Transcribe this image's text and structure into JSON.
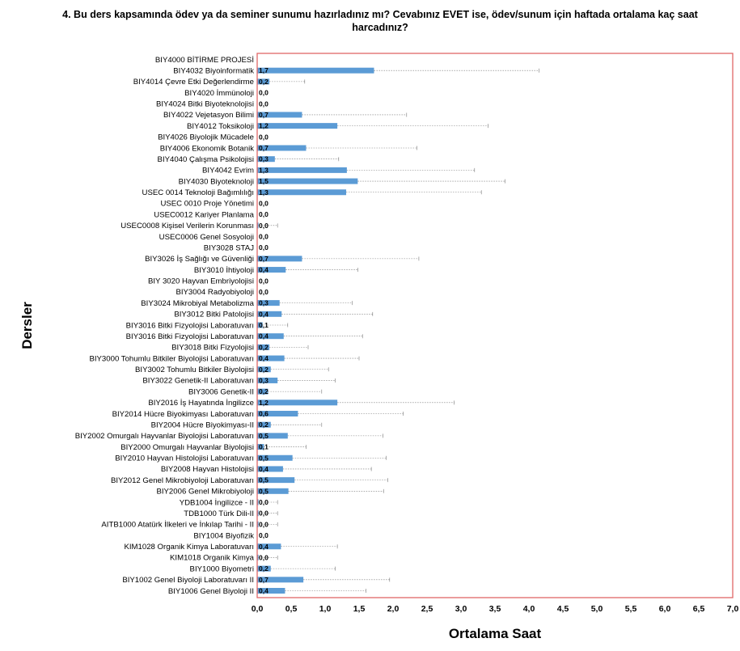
{
  "chart_data": {
    "type": "bar",
    "orientation": "horizontal",
    "title": "4. Bu ders kapsamında ödev ya da seminer sunumu hazırladınız mı? Cevabınız EVET ise, ödev/sunum için haftada ortalama kaç saat harcadınız?",
    "xlabel": "Ortalama Saat",
    "ylabel": "Dersler",
    "xlim": [
      0,
      7
    ],
    "xticks": [
      "0,0",
      "0,5",
      "1,0",
      "1,5",
      "2,0",
      "2,5",
      "3,0",
      "3,5",
      "4,0",
      "4,5",
      "5,0",
      "5,5",
      "6,0",
      "6,5",
      "7,0"
    ],
    "grid": false,
    "bar_color": "#5b9bd5",
    "frame_color": "#e06666",
    "error_bars": true,
    "categories": [
      "BIY4000 BİTİRME PROJESİ",
      "BIY4032 Biyoinformatik",
      "BIY4014 Çevre Etki Değerlendirme",
      "BIY4020 İmmünoloji",
      "BIY4024 Bitki Biyoteknolojisi",
      "BIY4022 Vejetasyon Bilimi",
      "BIY4012 Toksikoloji",
      "BIY4026 Biyolojik Mücadele",
      "BIY4006 Ekonomik Botanik",
      "BIY4040 Çalışma Psikolojisi",
      "BIY4042 Evrim",
      "BIY4030 Biyoteknoloji",
      "USEC 0014 Teknoloji Bağımlılığı",
      "USEC 0010 Proje Yönetimi",
      "USEC0012 Kariyer Planlama",
      "USEC0008 Kişisel Verilerin Korunması",
      "USEC0006 Genel Sosyoloji",
      "BIY3028 STAJ",
      "BIY3026 İş Sağlığı ve Güvenliği",
      "BIY3010 İhtiyoloji",
      "BIY 3020 Hayvan Embriyolojisi",
      "BIY3004 Radyobiyoloji",
      "BIY3024 Mikrobiyal Metabolizma",
      "BIY3012 Bitki Patolojisi",
      "BIY3016 Bitki Fizyolojisi Laboratuvarı",
      "BIY3016 Bitki Fizyolojisi Laboratuvarı",
      "BIY3018 Bitki Fizyolojisi",
      "BIY3000 Tohumlu Bitkiler Biyolojisi Laboratuvarı",
      "BIY3002 Tohumlu Bitkiler Biyolojisi",
      "BIY3022 Genetik-II Laboratuvarı",
      "BIY3006 Genetik-II",
      "BIY2016 İş Hayatında İngilizce",
      "BIY2014 Hücre Biyokimyası Laboratuvarı",
      "BIY2004 Hücre Biyokimyası-II",
      "BIY2002 Omurgalı Hayvanlar Biyolojisi Laboratuvarı",
      "BIY2000 Omurgalı Hayvanlar Biyolojisi",
      "BIY2010 Hayvan Histolojisi Laboratuvarı",
      "BIY2008 Hayvan Histolojisi",
      "BIY2012 Genel Mikrobiyoloji Laboratuvarı",
      "BIY2006 Genel Mikrobiyoloji",
      "YDB1004 İngilizce - II",
      "TDB1000 Türk Dili-II",
      "AITB1000 Atatürk İlkeleri ve İnkılap Tarihi - II",
      "BIY1004 Biyofizik",
      "KIM1028 Organik Kimya Laboratuvarı",
      "KIM1018 Organik Kimya",
      "BIY1000 Biyometri",
      "BIY1002 Genel Biyoloji Laboratuvarı II",
      "BIY1006 Genel Biyoloji II"
    ],
    "values": [
      null,
      1.72,
      0.18,
      0.0,
      0.0,
      0.66,
      1.18,
      0.0,
      0.72,
      0.26,
      1.32,
      1.48,
      1.31,
      0.0,
      0.0,
      0.02,
      0.0,
      0.0,
      0.66,
      0.42,
      0.0,
      0.0,
      0.33,
      0.36,
      0.08,
      0.39,
      0.18,
      0.4,
      0.2,
      0.3,
      0.16,
      1.18,
      0.6,
      0.2,
      0.45,
      0.1,
      0.52,
      0.38,
      0.55,
      0.46,
      0.02,
      0.02,
      0.02,
      0.0,
      0.35,
      0.02,
      0.2,
      0.68,
      0.41
    ],
    "value_labels": [
      "",
      "1,7",
      "0,2",
      "0,0",
      "0,0",
      "0,7",
      "1,2",
      "0,0",
      "0,7",
      "0,3",
      "1,3",
      "1,5",
      "1,3",
      "0,0",
      "0,0",
      "0,0",
      "0,0",
      "0,0",
      "0,7",
      "0,4",
      "0,0",
      "0,0",
      "0,3",
      "0,4",
      "0,1",
      "0,4",
      "0,2",
      "0,4",
      "0,2",
      "0,3",
      "0,2",
      "1,2",
      "0,6",
      "0,2",
      "0,5",
      "0,1",
      "0,5",
      "0,4",
      "0,5",
      "0,5",
      "0,0",
      "0,0",
      "0,0",
      "0,0",
      "0,4",
      "0,0",
      "0,2",
      "0,7",
      "0,4"
    ],
    "error_upper": [
      null,
      4.15,
      0.7,
      null,
      null,
      2.2,
      3.4,
      null,
      2.35,
      1.2,
      3.2,
      3.65,
      3.3,
      null,
      null,
      0.3,
      null,
      null,
      2.38,
      1.48,
      null,
      null,
      1.4,
      1.7,
      0.45,
      1.55,
      0.75,
      1.5,
      1.05,
      1.15,
      0.95,
      2.9,
      2.15,
      0.95,
      1.85,
      0.72,
      1.9,
      1.68,
      1.92,
      1.86,
      0.3,
      0.3,
      0.3,
      null,
      1.18,
      0.3,
      1.15,
      1.95,
      1.6
    ]
  }
}
